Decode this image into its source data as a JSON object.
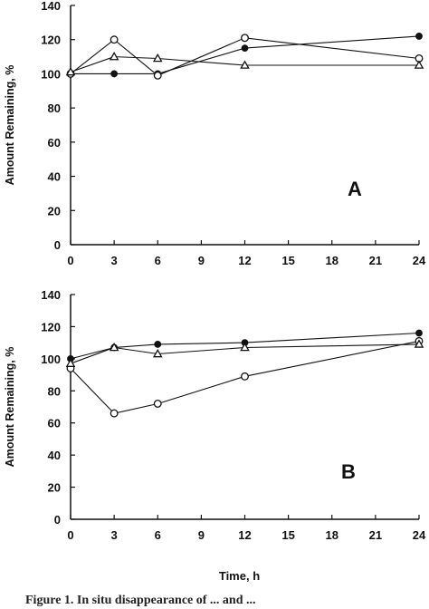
{
  "chart_data": [
    {
      "type": "line",
      "panel_label": "A",
      "ylabel": "Amount Remaining, %",
      "xlabel": "",
      "ylim": [
        0,
        140
      ],
      "xlim": [
        0,
        24
      ],
      "x_ticks": [
        "0",
        "3",
        "6",
        "9",
        "12",
        "15",
        "18",
        "21",
        "24"
      ],
      "y_ticks": [
        "0",
        "20",
        "40",
        "60",
        "80",
        "100",
        "120",
        "140"
      ],
      "grid": false,
      "series": [
        {
          "marker": "filled-circle",
          "x": [
            0,
            3,
            6,
            12,
            24
          ],
          "values": [
            100,
            100,
            100,
            115,
            122
          ]
        },
        {
          "marker": "open-circle",
          "x": [
            0,
            3,
            6,
            12,
            24
          ],
          "values": [
            100,
            120,
            99,
            121,
            109
          ]
        },
        {
          "marker": "open-triangle",
          "x": [
            0,
            3,
            6,
            12,
            24
          ],
          "values": [
            101,
            110,
            109,
            105,
            105
          ]
        }
      ]
    },
    {
      "type": "line",
      "panel_label": "B",
      "ylabel": "Amount Remaining, %",
      "xlabel": "Time, h",
      "ylim": [
        0,
        140
      ],
      "xlim": [
        0,
        24
      ],
      "x_ticks": [
        "0",
        "3",
        "6",
        "9",
        "12",
        "15",
        "18",
        "21",
        "24"
      ],
      "y_ticks": [
        "0",
        "20",
        "40",
        "60",
        "80",
        "100",
        "120",
        "140"
      ],
      "grid": false,
      "series": [
        {
          "marker": "filled-circle",
          "x": [
            0,
            3,
            6,
            12,
            24
          ],
          "values": [
            100,
            107,
            109,
            110,
            116
          ]
        },
        {
          "marker": "open-circle",
          "x": [
            0,
            3,
            6,
            12,
            24
          ],
          "values": [
            94,
            66,
            72,
            89,
            111
          ]
        },
        {
          "marker": "open-triangle",
          "x": [
            0,
            3,
            6,
            12,
            24
          ],
          "values": [
            97,
            107,
            103,
            107,
            109
          ]
        }
      ]
    }
  ],
  "caption": "Figure 1. In situ disappearance of ... and ..."
}
